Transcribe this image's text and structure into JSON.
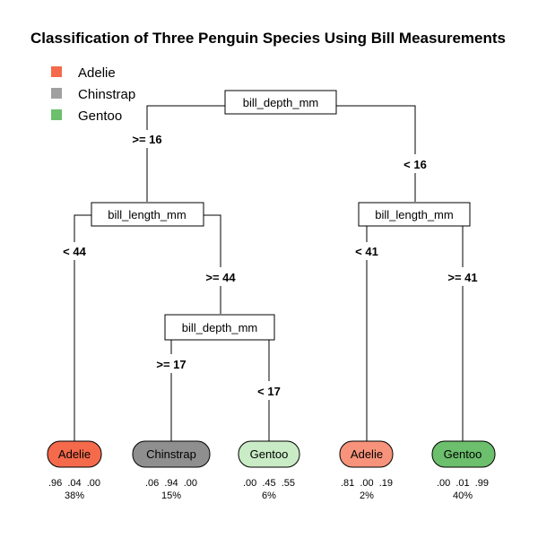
{
  "title": "Classification of Three Penguin Species Using Bill Measurements",
  "legend": [
    {
      "label": "Adelie",
      "color": "#f46a4b"
    },
    {
      "label": "Chinstrap",
      "color": "#a0a0a0"
    },
    {
      "label": "Gentoo",
      "color": "#6cbf6c"
    }
  ],
  "splits": {
    "root": {
      "label": "bill_depth_mm",
      "left_edge": ">= 16",
      "right_edge": "< 16"
    },
    "left": {
      "label": "bill_length_mm",
      "left_edge": "< 44",
      "right_edge": ">= 44"
    },
    "leftright": {
      "label": "bill_depth_mm",
      "left_edge": ">= 17",
      "right_edge": "< 17"
    },
    "right": {
      "label": "bill_length_mm",
      "left_edge": "< 41",
      "right_edge": ">= 41"
    }
  },
  "leaves": [
    {
      "label": "Adelie",
      "probs": ".96  .04  .00",
      "pct": "38%",
      "fill": "#f46a4b"
    },
    {
      "label": "Chinstrap",
      "probs": ".06  .94  .00",
      "pct": "15%",
      "fill": "#8f8f8f"
    },
    {
      "label": "Gentoo",
      "probs": ".00  .45  .55",
      "pct": "6%",
      "fill": "#c9ebc5"
    },
    {
      "label": "Adelie",
      "probs": ".81  .00  .19",
      "pct": "2%",
      "fill": "#f7937a"
    },
    {
      "label": "Gentoo",
      "probs": ".00  .01  .99",
      "pct": "40%",
      "fill": "#6cbf6c"
    }
  ]
}
